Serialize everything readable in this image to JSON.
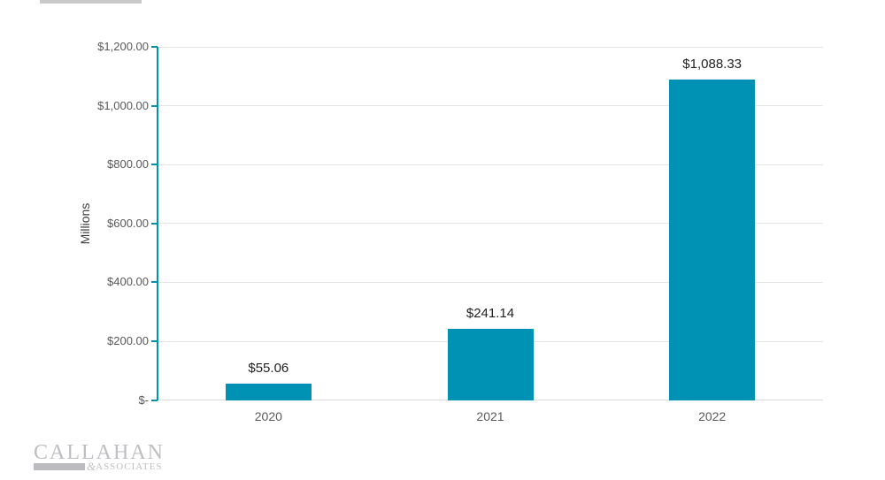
{
  "chart_data": {
    "type": "bar",
    "categories": [
      "2020",
      "2021",
      "2022"
    ],
    "values": [
      55.06,
      241.14,
      1088.33
    ],
    "data_labels": [
      "$55.06",
      "$241.14",
      "$1,088.33"
    ],
    "title": "",
    "xlabel": "",
    "ylabel": "Millions",
    "ylim": [
      0,
      1200
    ],
    "ytick_values": [
      0,
      200,
      400,
      600,
      800,
      1000,
      1200
    ],
    "ytick_labels": [
      "$-",
      "$200.00",
      "$400.00",
      "$600.00",
      "$800.00",
      "$1,000.00",
      "$1,200.00"
    ],
    "grid": true,
    "legend": false,
    "bar_color": "#0092b5"
  },
  "colors": {
    "bar": "#0092b5",
    "y_axis": "#0092b5",
    "gridline": "#e4e4e4",
    "baseline": "#dcdcdc",
    "tick_label": "#595959",
    "data_label": "#212121",
    "logo_gray": "#bfbfc3",
    "top_fragment": "#c9c9c9"
  },
  "branding": {
    "line1": "CALLAHAN",
    "ampersand": "&",
    "line2": "ASSOCIATES"
  }
}
